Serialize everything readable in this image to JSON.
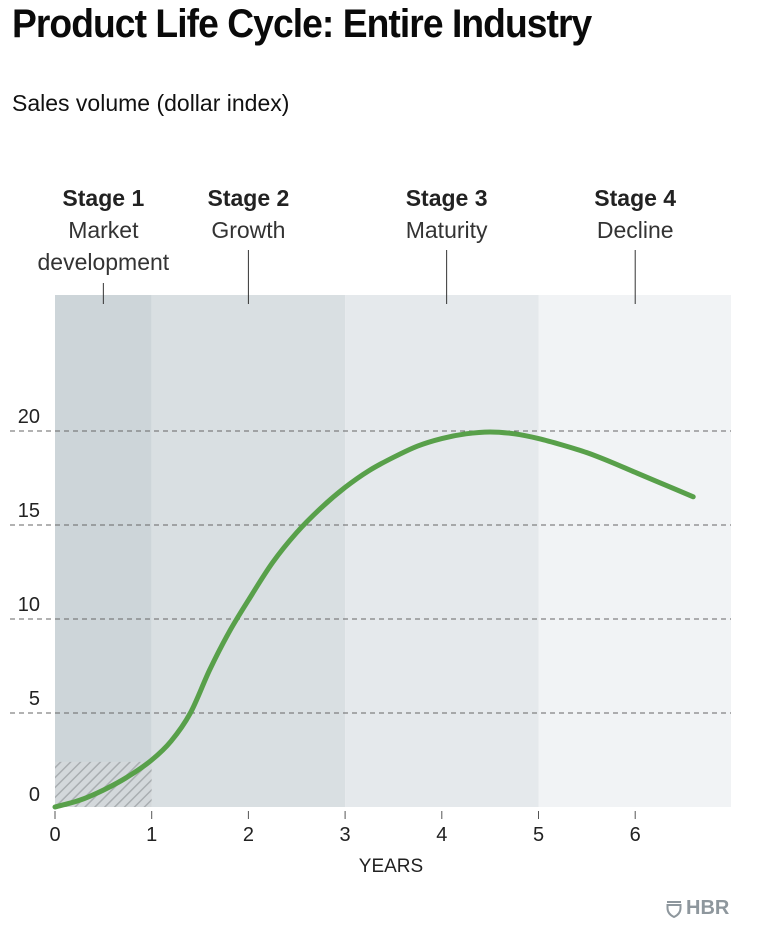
{
  "title": "Product Life Cycle: Entire Industry",
  "subtitle": "Sales volume (dollar index)",
  "logo": {
    "icon": "shield-icon",
    "text": "HBR",
    "color": "#8e979d"
  },
  "colors": {
    "line": "#58a04a",
    "stage_bands": [
      "#cdd5d9",
      "#d9dfe2",
      "#e5e9ec",
      "#f1f3f5"
    ],
    "grid": "#666666",
    "hatch": "#a9aeb1"
  },
  "chart_data": {
    "type": "line",
    "title": "Product Life Cycle: Entire Industry",
    "ylabel": "Sales volume (dollar index)",
    "xlabel": "YEARS",
    "xlim": [
      0,
      7
    ],
    "ylim": [
      0,
      20
    ],
    "x_ticks": [
      0,
      1,
      2,
      3,
      4,
      5,
      6
    ],
    "x_tick_labels": [
      "0",
      "1",
      "2",
      "3",
      "4",
      "5",
      "6"
    ],
    "y_ticks": [
      0,
      5,
      10,
      15,
      20
    ],
    "y_tick_labels": [
      "0",
      "5",
      "10",
      "15",
      "20"
    ],
    "grid": "horizontal-dashed",
    "legend": "none",
    "series": [
      {
        "name": "Sales volume",
        "x": [
          0,
          0.25,
          0.5,
          0.75,
          1.0,
          1.2,
          1.4,
          1.6,
          1.8,
          2.0,
          2.25,
          2.5,
          2.75,
          3.0,
          3.25,
          3.5,
          3.75,
          4.0,
          4.25,
          4.5,
          4.75,
          5.0,
          5.25,
          5.5,
          5.75,
          6.0,
          6.3,
          6.6
        ],
        "y": [
          0,
          0.35,
          0.9,
          1.6,
          2.5,
          3.5,
          5.0,
          7.3,
          9.3,
          11.0,
          13.0,
          14.6,
          15.9,
          17.0,
          17.9,
          18.6,
          19.2,
          19.6,
          19.85,
          19.95,
          19.85,
          19.6,
          19.25,
          18.85,
          18.35,
          17.8,
          17.15,
          16.5
        ]
      }
    ],
    "stages": [
      {
        "name": "Stage 1",
        "description": [
          "Market",
          "development"
        ],
        "x_range": [
          0,
          1
        ],
        "label_x": 0.5
      },
      {
        "name": "Stage 2",
        "description": [
          "Growth"
        ],
        "x_range": [
          1,
          3
        ],
        "label_x": 2
      },
      {
        "name": "Stage 3",
        "description": [
          "Maturity"
        ],
        "x_range": [
          3,
          5
        ],
        "label_x": 4.05
      },
      {
        "name": "Stage 4",
        "description": [
          "Decline"
        ],
        "x_range": [
          5,
          7
        ],
        "label_x": 6
      }
    ],
    "hatched_region": {
      "x_range": [
        0,
        1
      ],
      "y_range": [
        0,
        2.4
      ]
    }
  }
}
